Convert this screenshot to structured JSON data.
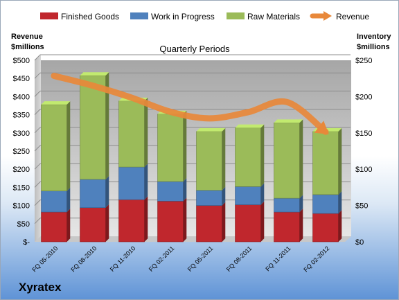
{
  "chart_data": {
    "type": "bar",
    "title": "Quarterly Periods",
    "company": "Xyratex",
    "categories": [
      "FQ 05-2010",
      "FQ 08-2010",
      "FQ 11-2010",
      "FQ 02-2011",
      "FQ 05-2011",
      "FQ 08-2011",
      "FQ 11-2011",
      "FQ 02-2012"
    ],
    "stacked": true,
    "series": [
      {
        "name": "Finished Goods",
        "axis": "right",
        "color": "#c0272d",
        "values": [
          41,
          47,
          58,
          56,
          50,
          51,
          41,
          39
        ]
      },
      {
        "name": "Work in Progress",
        "axis": "right",
        "color": "#4f81bd",
        "values": [
          29,
          39,
          45,
          27,
          21,
          25,
          19,
          26
        ]
      },
      {
        "name": "Raw Materials",
        "axis": "right",
        "color": "#9bbb59",
        "values": [
          119,
          143,
          91,
          93,
          81,
          81,
          104,
          87
        ]
      },
      {
        "name": "Revenue",
        "axis": "left",
        "type": "line",
        "color": "#e8883a",
        "values": [
          457,
          430,
          397,
          358,
          340,
          357,
          385,
          303
        ]
      }
    ],
    "left_axis": {
      "title_line1": "Revenue",
      "title_line2": "$millions",
      "min": 0,
      "max": 500,
      "step": 50,
      "tick_labels": [
        "$-",
        "$50",
        "$100",
        "$150",
        "$200",
        "$250",
        "$300",
        "$350",
        "$400",
        "$450",
        "$500"
      ]
    },
    "right_axis": {
      "title_line1": "Inventory",
      "title_line2": "$millions",
      "min": 0,
      "max": 250,
      "step": 50,
      "tick_labels": [
        "$0",
        "$50",
        "$100",
        "$150",
        "$200",
        "$250"
      ]
    },
    "legend_position": "top",
    "grid": true
  }
}
